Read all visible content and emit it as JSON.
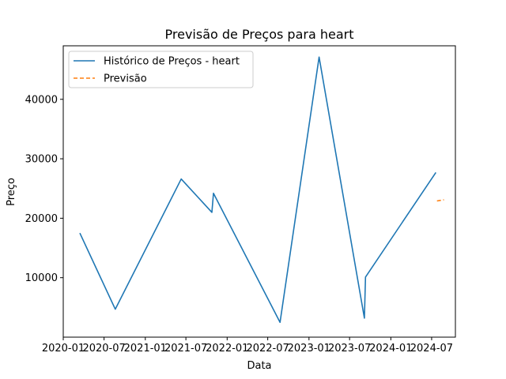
{
  "chart_data": {
    "type": "line",
    "title": "Previsão de Preços para heart",
    "xlabel": "Data",
    "ylabel": "Preço",
    "x_axis_kind": "date",
    "xlim": [
      "2020-01-01",
      "2024-10-15"
    ],
    "ylim": [
      0,
      49000
    ],
    "x_ticks": [
      "2020-01",
      "2020-07",
      "2021-01",
      "2021-07",
      "2022-01",
      "2022-07",
      "2023-01",
      "2023-07",
      "2024-01",
      "2024-07"
    ],
    "y_ticks": [
      10000,
      20000,
      30000,
      40000
    ],
    "y_tick_labels": [
      "10000",
      "20000",
      "30000",
      "40000"
    ],
    "legend_position": "top-left",
    "grid": false,
    "series": [
      {
        "name": "Histórico de Preços - heart",
        "color": "#1f77b4",
        "style": "solid",
        "points": [
          {
            "x": "2020-03-15",
            "y": 17500
          },
          {
            "x": "2020-08-20",
            "y": 4700
          },
          {
            "x": "2021-06-10",
            "y": 26600
          },
          {
            "x": "2021-10-25",
            "y": 21000
          },
          {
            "x": "2021-11-01",
            "y": 24200
          },
          {
            "x": "2022-08-25",
            "y": 2500
          },
          {
            "x": "2023-02-15",
            "y": 47100
          },
          {
            "x": "2023-09-05",
            "y": 3200
          },
          {
            "x": "2023-09-10",
            "y": 10100
          },
          {
            "x": "2024-07-20",
            "y": 27700
          }
        ]
      },
      {
        "name": "Previsão",
        "color": "#ff7f0e",
        "style": "dashed",
        "points": [
          {
            "x": "2024-07-25",
            "y": 22900
          },
          {
            "x": "2024-08-25",
            "y": 23100
          }
        ]
      }
    ]
  }
}
